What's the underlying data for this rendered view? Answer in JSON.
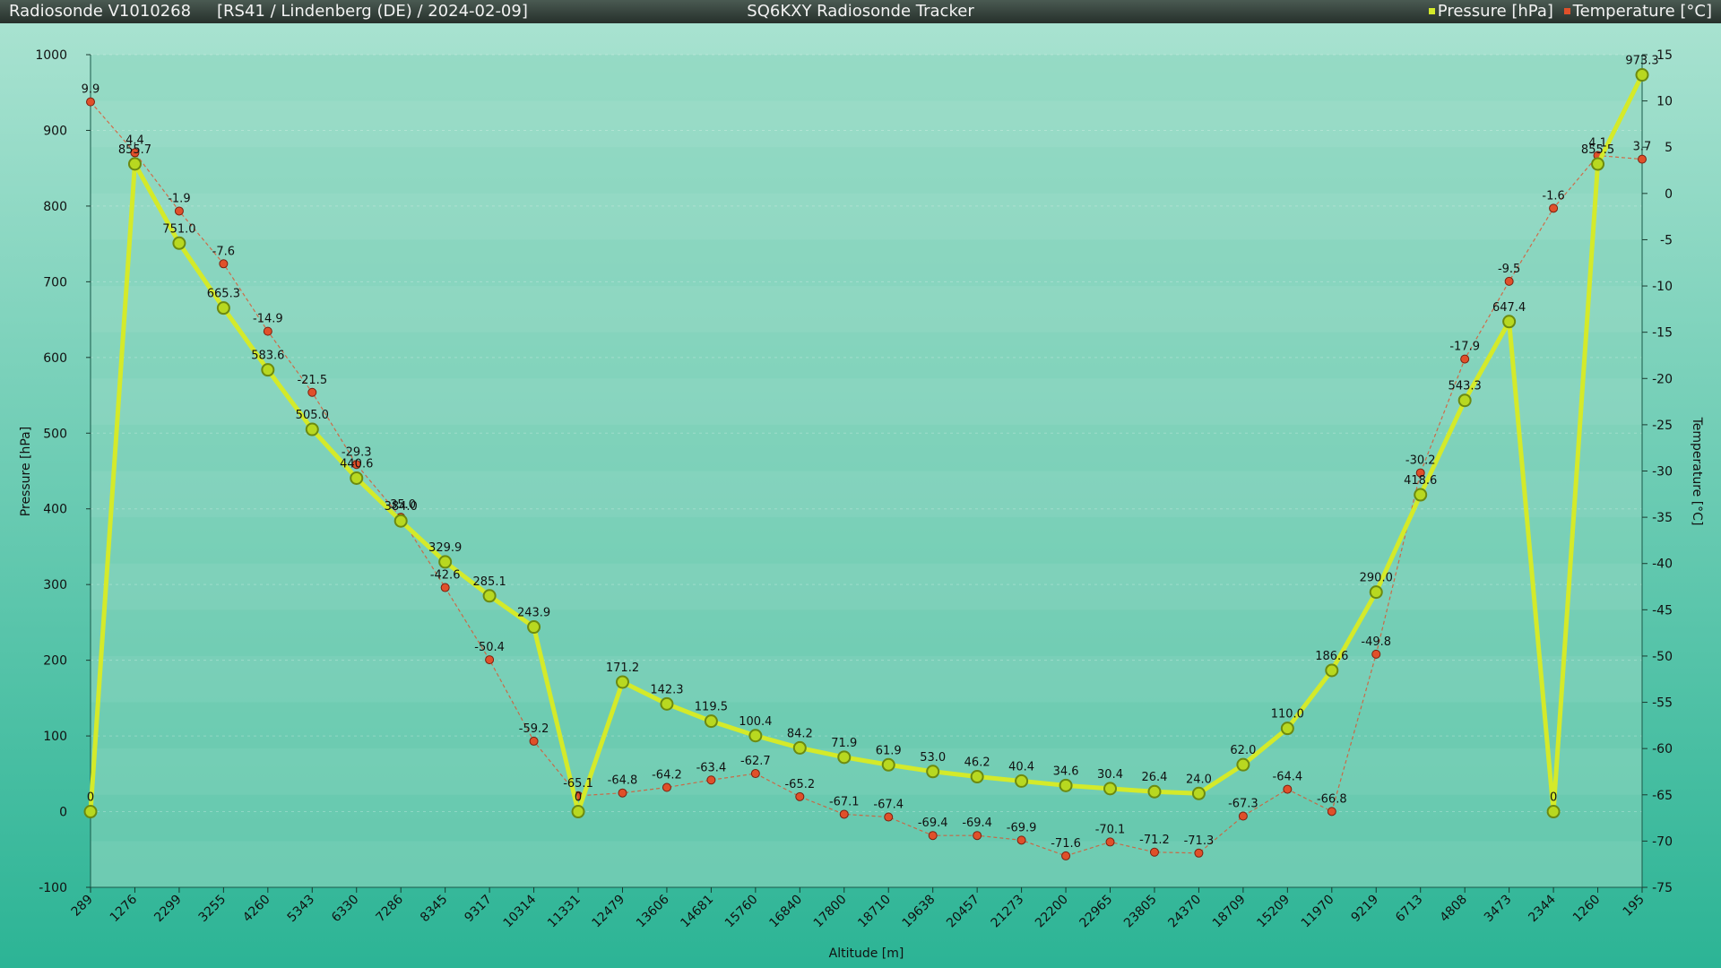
{
  "header": {
    "left_title": "Radiosonde V1010268",
    "sonde_info": "[RS41 / Lindenberg (DE) / 2024-02-09]",
    "app_title": "SQ6KXY Radiosonde Tracker"
  },
  "colors": {
    "pressure": "#d4ea2a",
    "temperature": "#e0502a",
    "plot_bg": "#8ad6be"
  },
  "chart_data": {
    "type": "line",
    "xlabel": "Altitude [m]",
    "ylabel": "Pressure [hPa]",
    "y2label": "Temperature [°C]",
    "ylim": [
      -100,
      1000
    ],
    "y2lim": [
      -75,
      15
    ],
    "grid": true,
    "legend_position": "top-right",
    "categories": [
      "289",
      "1276",
      "2299",
      "3255",
      "4260",
      "5343",
      "6330",
      "7286",
      "8345",
      "9317",
      "10314",
      "11331",
      "12479",
      "13606",
      "14681",
      "15760",
      "16840",
      "17800",
      "18710",
      "19638",
      "20457",
      "21273",
      "22200",
      "22965",
      "23805",
      "24370",
      "18709",
      "15209",
      "11970",
      "9219",
      "6713",
      "4808",
      "3473",
      "2344",
      "1260",
      "195"
    ],
    "series": [
      {
        "name": "Pressure [hPa]",
        "axis": "left",
        "values": [
          0,
          855.7,
          751.0,
          665.3,
          583.6,
          505.0,
          440.6,
          384.0,
          329.9,
          285.1,
          243.9,
          0,
          171.2,
          142.3,
          119.5,
          100.4,
          84.2,
          71.9,
          61.9,
          53.0,
          46.2,
          40.4,
          34.6,
          30.4,
          26.4,
          24.0,
          62.0,
          110.0,
          186.6,
          290.0,
          418.6,
          543.3,
          647.4,
          0,
          855.5,
          973.3
        ],
        "labels": [
          "0",
          "855.7",
          "751.0",
          "665.3",
          "583.6",
          "505.0",
          "440.6",
          "384.0",
          "329.9",
          "285.1",
          "243.9",
          "0",
          "171.2",
          "142.3",
          "119.5",
          "100.4",
          "84.2",
          "71.9",
          "61.9",
          "53.0",
          "46.2",
          "40.4",
          "34.6",
          "30.4",
          "26.4",
          "24.0",
          "62.0",
          "110.0",
          "186.6",
          "290.0",
          "418.6",
          "543.3",
          "647.4",
          "0",
          "855.5",
          "973.3"
        ]
      },
      {
        "name": "Temperature [°C]",
        "axis": "right",
        "values": [
          9.9,
          4.4,
          -1.9,
          -7.6,
          -14.9,
          -21.5,
          -29.3,
          -35.0,
          -42.6,
          -50.4,
          -59.2,
          -65.1,
          -64.8,
          -64.2,
          -63.4,
          -62.7,
          -65.2,
          -67.1,
          -67.4,
          -69.4,
          -69.4,
          -69.9,
          -71.6,
          -70.1,
          -71.2,
          -71.3,
          -67.3,
          -64.4,
          -66.8,
          -49.8,
          -30.2,
          -17.9,
          -9.5,
          -1.6,
          4.1,
          3.7
        ],
        "labels": [
          "9.9",
          "4.4",
          "-1.9",
          "-7.6",
          "-14.9",
          "-21.5",
          "-29.3",
          "-35.0",
          "-42.6",
          "-50.4",
          "-59.2",
          "-65.1",
          "-64.8",
          "-64.2",
          "-63.4",
          "-62.7",
          "-65.2",
          "-67.1",
          "-67.4",
          "-69.4",
          "-69.4",
          "-69.9",
          "-71.6",
          "-70.1",
          "-71.2",
          "-71.3",
          "-67.3",
          "-64.4",
          "-66.8",
          "-49.8",
          "-30.2",
          "-17.9",
          "-9.5",
          "-1.6",
          "4.1",
          "3.7"
        ]
      }
    ],
    "y_ticks": [
      "-100",
      "0",
      "100",
      "200",
      "300",
      "400",
      "500",
      "600",
      "700",
      "800",
      "900",
      "1000"
    ],
    "y2_ticks": [
      "-75",
      "-70",
      "-65",
      "-60",
      "-55",
      "-50",
      "-45",
      "-40",
      "-35",
      "-30",
      "-25",
      "-20",
      "-15",
      "-10",
      "-5",
      "0",
      "5",
      "10",
      "15"
    ]
  }
}
